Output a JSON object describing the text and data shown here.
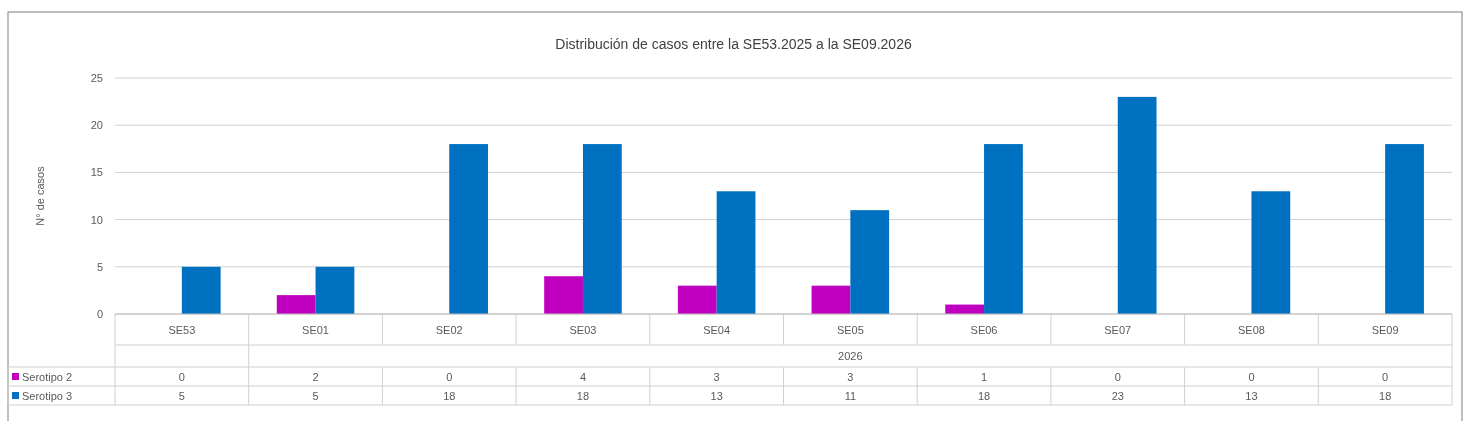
{
  "chart_data": {
    "type": "bar",
    "title": "Distribución de casos entre la SE53.2025 a la SE09.2026",
    "ylabel": "N° de casos",
    "categories": [
      "SE53",
      "SE01",
      "SE02",
      "SE03",
      "SE04",
      "SE05",
      "SE06",
      "SE07",
      "SE08",
      "SE09"
    ],
    "annotations": [
      "2026"
    ],
    "series": [
      {
        "name": "Serotipo 2",
        "color": "#c000c0",
        "values": [
          0,
          2,
          0,
          4,
          3,
          3,
          1,
          0,
          0,
          0
        ]
      },
      {
        "name": "Serotipo 3",
        "color": "#0070c0",
        "values": [
          5,
          5,
          18,
          18,
          13,
          11,
          18,
          23,
          13,
          18
        ]
      }
    ],
    "ylim": [
      0,
      25
    ],
    "yticks": [
      0,
      5,
      10,
      15,
      20,
      25
    ],
    "grid": "y",
    "data_labels": true,
    "legend": "bottom left"
  }
}
